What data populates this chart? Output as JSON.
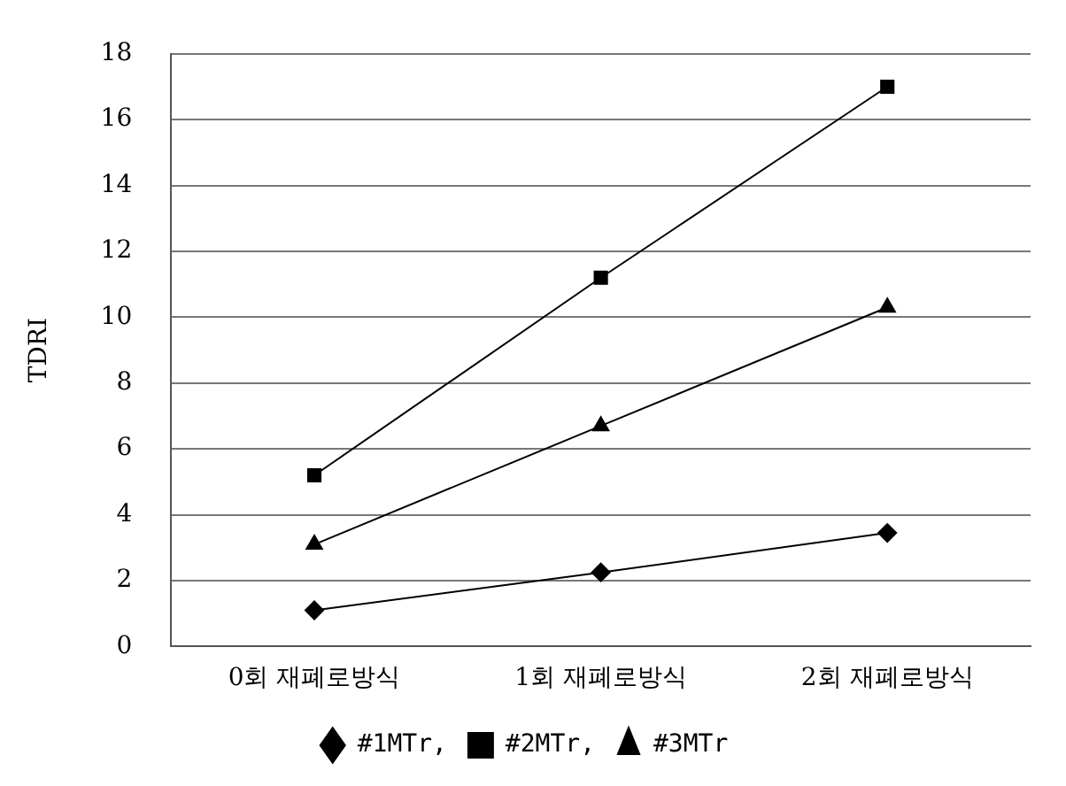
{
  "chart_data": {
    "type": "line",
    "ylabel": "TDRI",
    "categories": [
      "0회 재폐로방식",
      "1회 재폐로방식",
      "2회 재폐로방식"
    ],
    "series": [
      {
        "name": "#1MTr,",
        "color": "#000000",
        "marker": "diamond",
        "values": [
          1.1,
          2.25,
          3.45
        ]
      },
      {
        "name": "#2MTr,",
        "color": "#000000",
        "marker": "square",
        "values": [
          5.2,
          11.2,
          17.0
        ]
      },
      {
        "name": "#3MTr",
        "color": "#000000",
        "marker": "triangle",
        "values": [
          3.1,
          6.7,
          10.3
        ]
      }
    ],
    "ylim": [
      0,
      18
    ],
    "yticks": [
      0,
      2,
      4,
      6,
      8,
      10,
      12,
      14,
      16,
      18
    ],
    "grid": "y",
    "legend": "bottom",
    "line_style": "solid"
  }
}
